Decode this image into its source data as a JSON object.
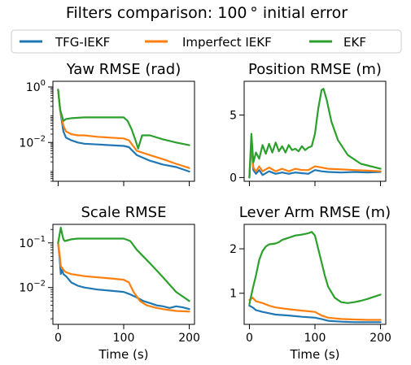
{
  "figure": {
    "title": "Filters comparison: 100$^\\circ$ initial error",
    "title_display": "Filters comparison: 100 ° initial error"
  },
  "legend": [
    {
      "name": "TFG-IEKF",
      "color": "#1f77b4"
    },
    {
      "name": "Imperfect IEKF",
      "color": "#ff7f0e"
    },
    {
      "name": "EKF",
      "color": "#2ca02c"
    }
  ],
  "chart_data": [
    {
      "type": "line",
      "title": "Yaw RMSE (rad)",
      "xlabel": "",
      "ylabel": "",
      "xscale": "linear",
      "yscale": "log",
      "xlim": [
        -8,
        208
      ],
      "ylim": [
        0.0004,
        1.6
      ],
      "xticks": [
        0,
        100,
        200
      ],
      "xtick_labels": [
        "",
        "",
        ""
      ],
      "yticks": [
        1,
        0.01
      ],
      "ytick_labels": [
        "10^0",
        "10^-2"
      ],
      "series": [
        {
          "name": "TFG-IEKF",
          "x": [
            0,
            3,
            8,
            12,
            20,
            30,
            40,
            60,
            80,
            100,
            108,
            120,
            140,
            160,
            180,
            200
          ],
          "values": [
            0.8,
            0.15,
            0.025,
            0.015,
            0.012,
            0.01,
            0.009,
            0.0085,
            0.008,
            0.0075,
            0.0068,
            0.0035,
            0.0022,
            0.0016,
            0.0013,
            0.0009
          ]
        },
        {
          "name": "Imperfect IEKF",
          "x": [
            0,
            3,
            8,
            12,
            20,
            30,
            40,
            60,
            80,
            100,
            108,
            120,
            140,
            160,
            180,
            200
          ],
          "values": [
            0.8,
            0.15,
            0.04,
            0.025,
            0.02,
            0.018,
            0.018,
            0.016,
            0.015,
            0.014,
            0.012,
            0.005,
            0.0035,
            0.0025,
            0.0017,
            0.0012
          ]
        },
        {
          "name": "EKF",
          "x": [
            0,
            3,
            8,
            12,
            20,
            40,
            60,
            80,
            100,
            106,
            112,
            118,
            122,
            128,
            140,
            160,
            180,
            200
          ],
          "values": [
            0.8,
            0.15,
            0.06,
            0.07,
            0.075,
            0.08,
            0.08,
            0.08,
            0.08,
            0.06,
            0.03,
            0.012,
            0.006,
            0.018,
            0.018,
            0.013,
            0.01,
            0.008
          ]
        }
      ]
    },
    {
      "type": "line",
      "title": "Position RMSE (m)",
      "xlabel": "",
      "ylabel": "",
      "xscale": "linear",
      "yscale": "linear",
      "xlim": [
        -8,
        208
      ],
      "ylim": [
        -0.3,
        7.7
      ],
      "xticks": [
        0,
        100,
        200
      ],
      "xtick_labels": [
        "",
        "",
        ""
      ],
      "yticks": [
        0,
        5
      ],
      "ytick_labels": [
        "0",
        "5"
      ],
      "series": [
        {
          "name": "TFG-IEKF",
          "x": [
            0,
            3,
            6,
            10,
            15,
            20,
            30,
            40,
            50,
            60,
            70,
            80,
            90,
            100,
            110,
            120,
            140,
            160,
            180,
            200
          ],
          "values": [
            0,
            2.8,
            0.6,
            0.3,
            0.6,
            0.2,
            0.5,
            0.3,
            0.4,
            0.3,
            0.4,
            0.35,
            0.3,
            0.6,
            0.5,
            0.45,
            0.4,
            0.45,
            0.4,
            0.45
          ]
        },
        {
          "name": "Imperfect IEKF",
          "x": [
            0,
            3,
            6,
            10,
            15,
            20,
            30,
            40,
            50,
            60,
            70,
            80,
            90,
            100,
            110,
            120,
            140,
            160,
            180,
            200
          ],
          "values": [
            0,
            3.0,
            0.8,
            0.5,
            0.9,
            0.5,
            0.8,
            0.5,
            0.7,
            0.5,
            0.7,
            0.6,
            0.6,
            0.9,
            0.8,
            0.7,
            0.65,
            0.6,
            0.55,
            0.5
          ]
        },
        {
          "name": "EKF",
          "x": [
            0,
            3,
            6,
            10,
            15,
            20,
            25,
            30,
            35,
            40,
            45,
            50,
            55,
            60,
            65,
            70,
            75,
            80,
            85,
            90,
            95,
            100,
            105,
            110,
            113,
            118,
            125,
            135,
            150,
            170,
            200
          ],
          "values": [
            0,
            3.5,
            1.2,
            2.0,
            1.5,
            2.6,
            1.9,
            2.7,
            2.0,
            2.8,
            2.1,
            2.5,
            2.0,
            2.6,
            2.2,
            2.3,
            2.1,
            2.5,
            2.2,
            2.4,
            2.5,
            3.5,
            5.5,
            7.0,
            7.1,
            6.2,
            4.5,
            3.0,
            1.8,
            1.1,
            0.7
          ]
        }
      ]
    },
    {
      "type": "line",
      "title": "Scale RMSE",
      "xlabel": "Time (s)",
      "ylabel": "",
      "xscale": "linear",
      "yscale": "log",
      "xlim": [
        -8,
        208
      ],
      "ylim": [
        0.0015,
        0.26
      ],
      "xticks": [
        0,
        100,
        200
      ],
      "xtick_labels": [
        "0",
        "100",
        "200"
      ],
      "yticks": [
        0.1,
        0.01
      ],
      "ytick_labels": [
        "10^-1",
        "10^-2"
      ],
      "series": [
        {
          "name": "TFG-IEKF",
          "x": [
            0,
            2,
            4,
            6,
            8,
            12,
            20,
            30,
            40,
            60,
            80,
            100,
            110,
            120,
            130,
            140,
            150,
            160,
            170,
            180,
            190,
            200
          ],
          "values": [
            0.1,
            0.05,
            0.02,
            0.025,
            0.02,
            0.018,
            0.013,
            0.011,
            0.01,
            0.009,
            0.0085,
            0.008,
            0.007,
            0.006,
            0.005,
            0.0045,
            0.004,
            0.0038,
            0.0035,
            0.0038,
            0.0036,
            0.0033
          ]
        },
        {
          "name": "Imperfect IEKF",
          "x": [
            0,
            2,
            4,
            6,
            8,
            12,
            20,
            30,
            40,
            60,
            80,
            100,
            108,
            115,
            125,
            135,
            150,
            165,
            180,
            200
          ],
          "values": [
            0.1,
            0.06,
            0.03,
            0.028,
            0.025,
            0.022,
            0.02,
            0.019,
            0.018,
            0.017,
            0.016,
            0.015,
            0.013,
            0.008,
            0.005,
            0.004,
            0.0035,
            0.0032,
            0.003,
            0.0029
          ]
        },
        {
          "name": "EKF",
          "x": [
            0,
            2,
            4,
            6,
            8,
            10,
            15,
            20,
            30,
            40,
            60,
            80,
            100,
            110,
            120,
            140,
            160,
            180,
            200
          ],
          "values": [
            0.1,
            0.15,
            0.22,
            0.16,
            0.12,
            0.11,
            0.115,
            0.12,
            0.125,
            0.125,
            0.125,
            0.125,
            0.125,
            0.11,
            0.07,
            0.035,
            0.017,
            0.008,
            0.005
          ]
        }
      ]
    },
    {
      "type": "line",
      "title": "Lever Arm RMSE (m)",
      "xlabel": "Time (s)",
      "ylabel": "",
      "xscale": "linear",
      "yscale": "linear",
      "xlim": [
        -8,
        208
      ],
      "ylim": [
        0.3,
        2.55
      ],
      "xticks": [
        0,
        100,
        200
      ],
      "xtick_labels": [
        "0",
        "100",
        "200"
      ],
      "yticks": [
        1,
        2
      ],
      "ytick_labels": [
        "1",
        "2"
      ],
      "series": [
        {
          "name": "TFG-IEKF",
          "x": [
            0,
            5,
            10,
            20,
            30,
            40,
            60,
            80,
            100,
            110,
            120,
            140,
            160,
            180,
            200
          ],
          "values": [
            0.72,
            0.68,
            0.62,
            0.58,
            0.55,
            0.52,
            0.5,
            0.47,
            0.45,
            0.42,
            0.38,
            0.36,
            0.35,
            0.35,
            0.35
          ]
        },
        {
          "name": "Imperfect IEKF",
          "x": [
            0,
            5,
            10,
            20,
            30,
            40,
            60,
            80,
            100,
            110,
            120,
            140,
            160,
            180,
            200
          ],
          "values": [
            0.85,
            0.9,
            0.82,
            0.78,
            0.72,
            0.68,
            0.64,
            0.61,
            0.58,
            0.5,
            0.45,
            0.42,
            0.41,
            0.4,
            0.4
          ]
        },
        {
          "name": "EKF",
          "x": [
            0,
            5,
            10,
            15,
            20,
            25,
            30,
            40,
            45,
            50,
            60,
            70,
            80,
            90,
            95,
            100,
            105,
            110,
            115,
            120,
            130,
            140,
            150,
            160,
            170,
            180,
            190,
            200
          ],
          "values": [
            0.75,
            1.1,
            1.4,
            1.75,
            1.95,
            2.05,
            2.1,
            2.12,
            2.15,
            2.2,
            2.25,
            2.3,
            2.32,
            2.35,
            2.38,
            2.3,
            2.0,
            1.7,
            1.4,
            1.15,
            0.9,
            0.8,
            0.78,
            0.8,
            0.83,
            0.87,
            0.92,
            0.97
          ]
        }
      ]
    }
  ]
}
